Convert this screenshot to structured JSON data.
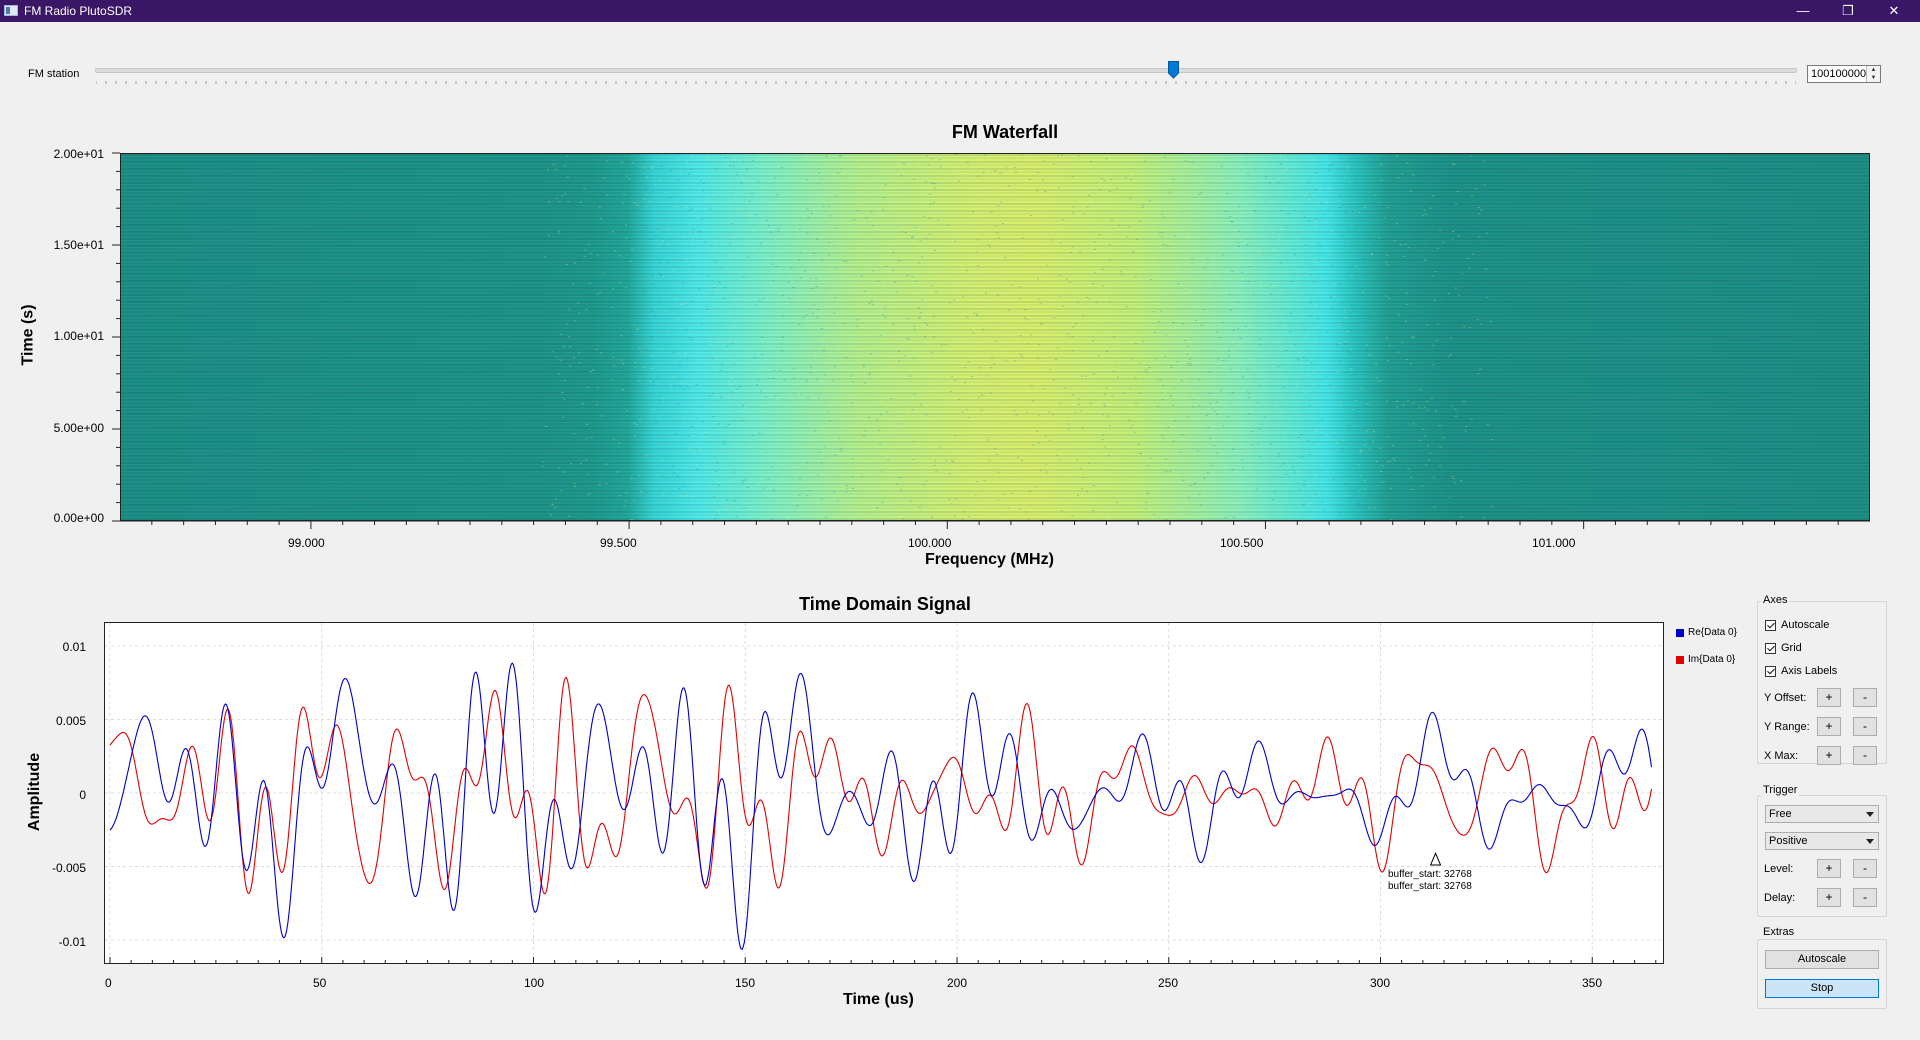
{
  "window": {
    "title": "FM Radio PlutoSDR",
    "minimize": "—",
    "restore": "❐",
    "close": "✕"
  },
  "station": {
    "label": "FM station",
    "value": "100100000",
    "slider_fraction": 0.634
  },
  "waterfall": {
    "title": "FM Waterfall",
    "xlabel": "Frequency (MHz)",
    "ylabel": "Time (s)",
    "xticks": [
      "99.000",
      "99.500",
      "100.000",
      "100.500",
      "101.000"
    ],
    "yticks": [
      "2.00e+01",
      "1.50e+01",
      "1.00e+01",
      "5.00e+00",
      "0.00e+00"
    ]
  },
  "time_plot": {
    "title": "Time Domain Signal",
    "xlabel": "Time (us)",
    "ylabel": "Amplitude",
    "xticks": [
      "0",
      "50",
      "100",
      "150",
      "200",
      "250",
      "300",
      "350"
    ],
    "yticks": [
      "0.01",
      "0.005",
      "0",
      "-0.005",
      "-0.01"
    ],
    "legend": [
      "Re{Data 0}",
      "Im{Data 0}"
    ],
    "series_colors": [
      "#0000c8",
      "#e00000"
    ],
    "annotation_line1": "buffer_start: 32768",
    "annotation_line2": "buffer_start: 32768"
  },
  "chart_data": {
    "type": "line",
    "title": "Time Domain Signal",
    "xlabel": "Time (us)",
    "ylabel": "Amplitude",
    "xlim": [
      0,
      368
    ],
    "ylim": [
      -0.0116,
      0.0116
    ],
    "grid": true,
    "legend_position": "right",
    "series": [
      {
        "name": "Re{Data 0}",
        "color": "#0000c8"
      },
      {
        "name": "Im{Data 0}",
        "color": "#e00000"
      }
    ]
  },
  "panel": {
    "axes": {
      "title": "Axes",
      "autoscale": "Autoscale",
      "grid": "Grid",
      "axis_labels": "Axis Labels",
      "y_offset": "Y Offset:",
      "y_range": "Y Range:",
      "x_max": "X Max:",
      "plus": "+",
      "minus": "-"
    },
    "trigger": {
      "title": "Trigger",
      "mode": "Free",
      "slope": "Positive",
      "level": "Level:",
      "delay": "Delay:"
    },
    "extras": {
      "title": "Extras",
      "autoscale": "Autoscale",
      "stop": "Stop"
    }
  }
}
